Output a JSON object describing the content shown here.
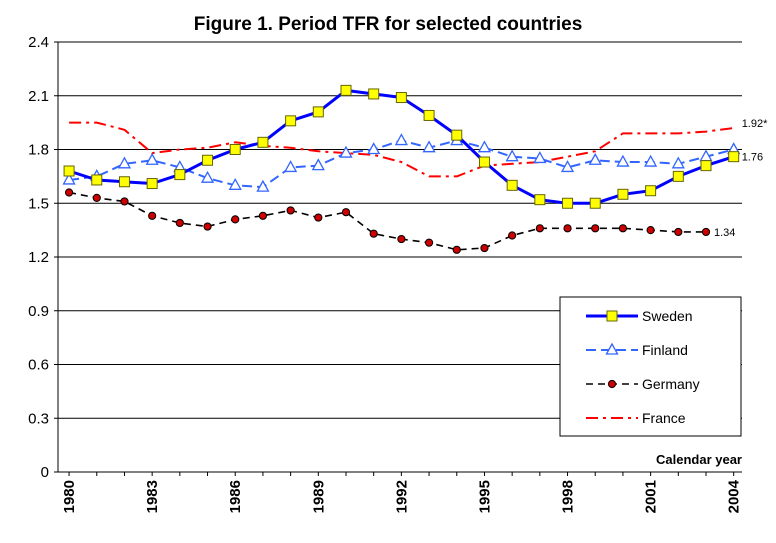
{
  "chart_data": {
    "type": "line",
    "title": "Figure 1. Period TFR for selected countries",
    "xlabel": "Calendar year",
    "ylabel": "",
    "ylim": [
      0,
      2.4
    ],
    "yticks": [
      "0",
      "0.3",
      "0.6",
      "0.9",
      "1.2",
      "1.5",
      "1.8",
      "2.1",
      "2.4"
    ],
    "xticks": [
      "1980",
      "1983",
      "1986",
      "1989",
      "1992",
      "1995",
      "1998",
      "2001",
      "2004"
    ],
    "grid": "horizontal",
    "legend_position": "bottom-right",
    "x": [
      1980,
      1981,
      1982,
      1983,
      1984,
      1985,
      1986,
      1987,
      1988,
      1989,
      1990,
      1991,
      1992,
      1993,
      1994,
      1995,
      1996,
      1997,
      1998,
      1999,
      2000,
      2001,
      2002,
      2003,
      2004
    ],
    "series": [
      {
        "name": "Sweden",
        "color": "#0000ff",
        "marker": "square",
        "values": [
          1.68,
          1.63,
          1.62,
          1.61,
          1.66,
          1.74,
          1.8,
          1.84,
          1.96,
          2.01,
          2.13,
          2.11,
          2.09,
          1.99,
          1.88,
          1.73,
          1.6,
          1.52,
          1.5,
          1.5,
          1.55,
          1.57,
          1.65,
          1.71,
          1.76
        ]
      },
      {
        "name": "Finland",
        "color": "#3366ff",
        "marker": "triangle",
        "values": [
          1.63,
          1.65,
          1.72,
          1.74,
          1.7,
          1.64,
          1.6,
          1.59,
          1.7,
          1.71,
          1.78,
          1.8,
          1.85,
          1.81,
          1.85,
          1.81,
          1.76,
          1.75,
          1.7,
          1.74,
          1.73,
          1.73,
          1.72,
          1.76,
          1.8
        ]
      },
      {
        "name": "Germany",
        "color": "#000000",
        "marker": "circle",
        "values": [
          1.56,
          1.53,
          1.51,
          1.43,
          1.39,
          1.37,
          1.41,
          1.43,
          1.46,
          1.42,
          1.45,
          1.33,
          1.3,
          1.28,
          1.24,
          1.25,
          1.32,
          1.36,
          1.36,
          1.36,
          1.36,
          1.35,
          1.34,
          1.34,
          null
        ]
      },
      {
        "name": "France",
        "color": "#ff0000",
        "marker": "none",
        "values": [
          1.95,
          1.95,
          1.91,
          1.78,
          1.8,
          1.81,
          1.84,
          1.82,
          1.81,
          1.79,
          1.78,
          1.77,
          1.73,
          1.65,
          1.65,
          1.71,
          1.72,
          1.73,
          1.76,
          1.79,
          1.89,
          1.89,
          1.89,
          1.9,
          1.92
        ]
      }
    ],
    "annotations": [
      {
        "text": "1.92*",
        "x": 2004,
        "y": 1.92
      },
      {
        "text": "1.76",
        "x": 2004,
        "y": 1.76
      },
      {
        "text": "1.34",
        "x": 2003,
        "y": 1.34
      }
    ]
  }
}
